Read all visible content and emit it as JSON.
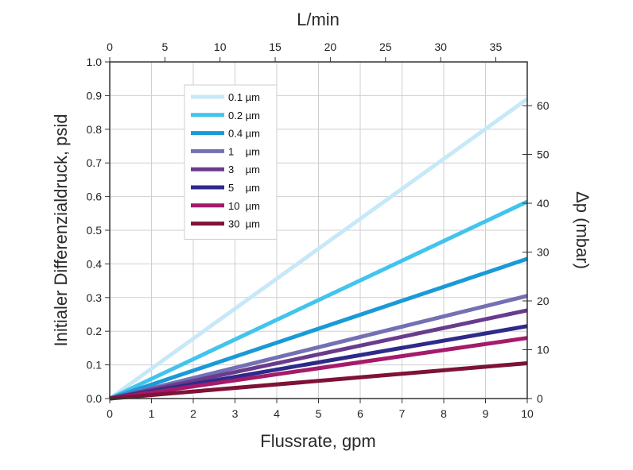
{
  "chart_data": {
    "type": "line",
    "xlabel": "Flussrate, gpm",
    "x2label": "L/min",
    "ylabel": "Initialer Differenzialdruck, psid",
    "y2label": "Δp (mbar)",
    "xlim": [
      0,
      10
    ],
    "ylim": [
      0,
      1.0
    ],
    "x2lim": [
      0,
      37.85
    ],
    "y2lim": [
      0,
      68.95
    ],
    "x_ticks": [
      "0",
      "1",
      "2",
      "3",
      "4",
      "5",
      "6",
      "7",
      "8",
      "9",
      "10"
    ],
    "y_ticks": [
      "0.0",
      "0.1",
      "0.2",
      "0.3",
      "0.4",
      "0.5",
      "0.6",
      "0.7",
      "0.8",
      "0.9",
      "1.0"
    ],
    "x2_ticks": [
      "0",
      "5",
      "10",
      "15",
      "20",
      "25",
      "30",
      "35"
    ],
    "y2_ticks": [
      "0",
      "10",
      "20",
      "30",
      "40",
      "50",
      "60"
    ],
    "grid": true,
    "legend_position": "top-left",
    "series": [
      {
        "name": "0.1 µm",
        "color": "#c7e8f8",
        "x": [
          0,
          10
        ],
        "y": [
          0,
          0.89
        ]
      },
      {
        "name": "0.2 µm",
        "color": "#42c4ec",
        "x": [
          0,
          10
        ],
        "y": [
          0,
          0.585
        ]
      },
      {
        "name": "0.4 µm",
        "color": "#1a9ad6",
        "x": [
          0,
          10
        ],
        "y": [
          0,
          0.415
        ]
      },
      {
        "name": "1    µm",
        "color": "#7470b4",
        "x": [
          0,
          10
        ],
        "y": [
          0,
          0.305
        ]
      },
      {
        "name": "3    µm",
        "color": "#6a3b8c",
        "x": [
          0,
          10
        ],
        "y": [
          0,
          0.262
        ]
      },
      {
        "name": "5    µm",
        "color": "#2e2a8a",
        "x": [
          0,
          10
        ],
        "y": [
          0,
          0.215
        ]
      },
      {
        "name": "10  µm",
        "color": "#a51a6a",
        "x": [
          0,
          10
        ],
        "y": [
          0,
          0.18
        ]
      },
      {
        "name": "30  µm",
        "color": "#7e1238",
        "x": [
          0,
          10
        ],
        "y": [
          0,
          0.105
        ]
      }
    ]
  }
}
